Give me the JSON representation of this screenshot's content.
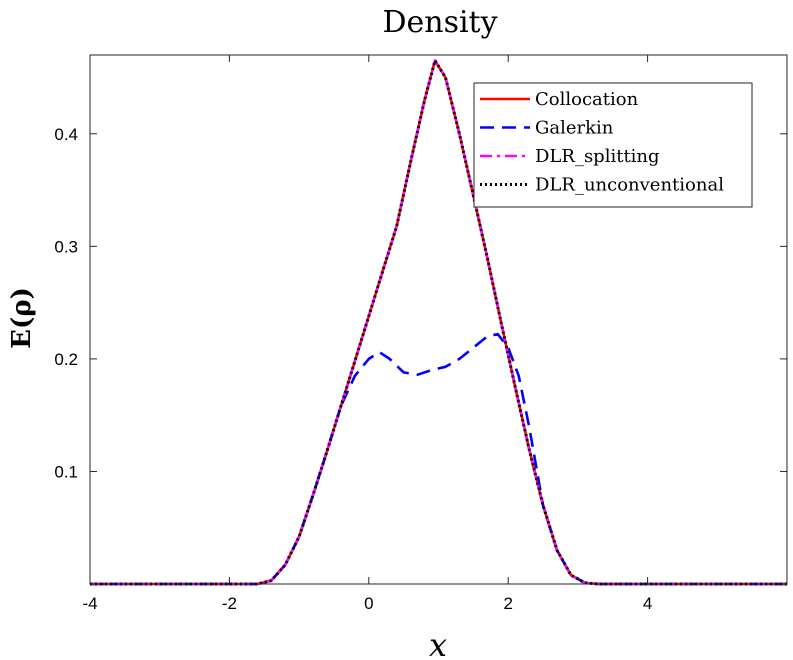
{
  "chart_data": {
    "type": "line",
    "title": "Density",
    "xlabel": "x",
    "ylabel": "E(ρ)",
    "xlim": [
      -4,
      6
    ],
    "ylim": [
      0,
      0.47
    ],
    "xticks": [
      -4,
      -2,
      0,
      2,
      4
    ],
    "yticks": [
      0.1,
      0.2,
      0.3,
      0.4
    ],
    "xtick_labels": [
      "-4",
      "-2",
      "0",
      "2",
      "4"
    ],
    "ytick_labels": [
      "0.1",
      "0.2",
      "0.3",
      "0.4"
    ],
    "grid": false,
    "legend_position": "top-right",
    "series": [
      {
        "name": "Collocation",
        "color": "#ff0000",
        "style": "solid",
        "x": [
          -4,
          -1.6,
          -1.4,
          -1.2,
          -1.0,
          -0.8,
          -0.6,
          -0.4,
          -0.2,
          0.0,
          0.2,
          0.4,
          0.6,
          0.8,
          0.95,
          1.1,
          1.3,
          1.5,
          1.7,
          1.9,
          2.1,
          2.3,
          2.5,
          2.7,
          2.9,
          3.1,
          3.3,
          6
        ],
        "y": [
          0,
          0,
          0.003,
          0.017,
          0.042,
          0.079,
          0.118,
          0.158,
          0.198,
          0.238,
          0.278,
          0.318,
          0.375,
          0.43,
          0.465,
          0.45,
          0.4,
          0.345,
          0.29,
          0.232,
          0.175,
          0.12,
          0.07,
          0.03,
          0.008,
          0.001,
          0,
          0
        ]
      },
      {
        "name": "Galerkin",
        "color": "#0000ff",
        "style": "dashed",
        "x": [
          -4,
          -1.6,
          -1.4,
          -1.2,
          -1.0,
          -0.8,
          -0.6,
          -0.4,
          -0.2,
          0.0,
          0.15,
          0.3,
          0.5,
          0.7,
          0.9,
          1.1,
          1.3,
          1.5,
          1.7,
          1.85,
          2.0,
          2.15,
          2.3,
          2.5,
          2.7,
          2.9,
          3.1,
          3.3,
          6
        ],
        "y": [
          0,
          0,
          0.003,
          0.017,
          0.042,
          0.079,
          0.118,
          0.158,
          0.185,
          0.2,
          0.206,
          0.2,
          0.188,
          0.186,
          0.19,
          0.193,
          0.2,
          0.21,
          0.22,
          0.222,
          0.21,
          0.185,
          0.14,
          0.07,
          0.03,
          0.008,
          0.001,
          0,
          0
        ]
      },
      {
        "name": "DLR_splitting",
        "color": "#ff00ff",
        "style": "dashdot",
        "x": [
          -4,
          -1.6,
          -1.4,
          -1.2,
          -1.0,
          -0.8,
          -0.6,
          -0.4,
          -0.2,
          0.0,
          0.2,
          0.4,
          0.6,
          0.8,
          0.95,
          1.1,
          1.3,
          1.5,
          1.7,
          1.9,
          2.1,
          2.3,
          2.5,
          2.7,
          2.9,
          3.1,
          3.3,
          6
        ],
        "y": [
          0,
          0,
          0.003,
          0.017,
          0.042,
          0.079,
          0.118,
          0.158,
          0.198,
          0.238,
          0.278,
          0.318,
          0.375,
          0.43,
          0.465,
          0.45,
          0.4,
          0.345,
          0.29,
          0.232,
          0.175,
          0.12,
          0.07,
          0.03,
          0.008,
          0.001,
          0,
          0
        ]
      },
      {
        "name": "DLR_unconventional",
        "color": "#000000",
        "style": "dotted",
        "x": [
          -4,
          -1.6,
          -1.4,
          -1.2,
          -1.0,
          -0.8,
          -0.6,
          -0.4,
          -0.2,
          0.0,
          0.2,
          0.4,
          0.6,
          0.8,
          0.95,
          1.1,
          1.3,
          1.5,
          1.7,
          1.9,
          2.1,
          2.3,
          2.5,
          2.7,
          2.9,
          3.1,
          3.3,
          6
        ],
        "y": [
          0,
          0,
          0.003,
          0.017,
          0.042,
          0.079,
          0.118,
          0.158,
          0.198,
          0.238,
          0.278,
          0.318,
          0.375,
          0.43,
          0.465,
          0.45,
          0.4,
          0.345,
          0.29,
          0.232,
          0.175,
          0.12,
          0.07,
          0.03,
          0.008,
          0.001,
          0,
          0
        ]
      }
    ]
  }
}
